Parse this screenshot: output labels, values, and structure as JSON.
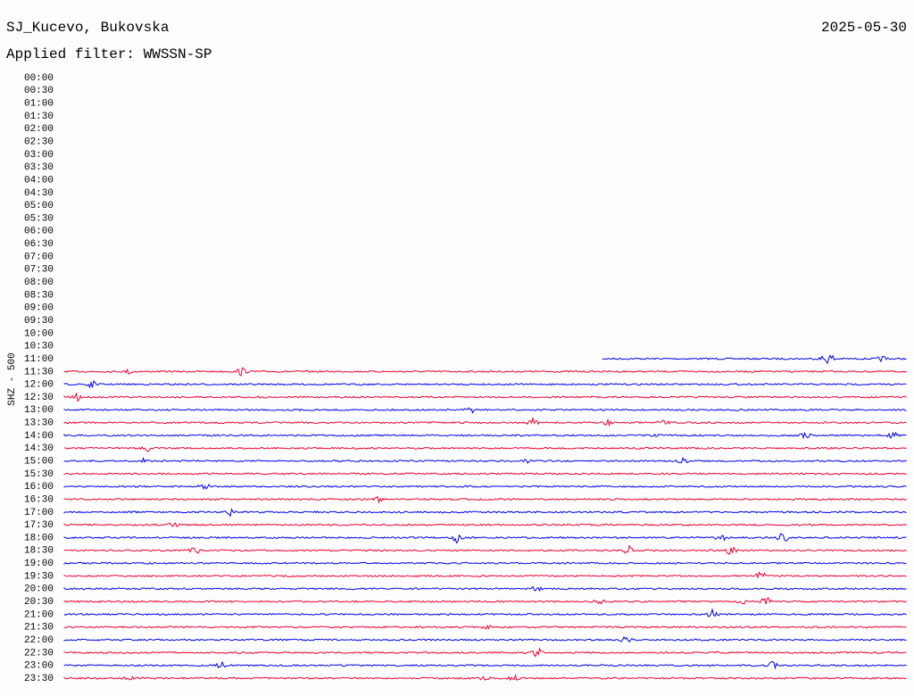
{
  "header": {
    "station": "SJ_Kucevo, Bukovska",
    "date": "2025-05-30",
    "filter": "Applied filter: WWSSN-SP"
  },
  "channel_label": "SHZ - 500",
  "trace_colors": [
    "#0000ee",
    "#ee0033"
  ],
  "rows": [
    "00:00",
    "00:30",
    "01:00",
    "01:30",
    "02:00",
    "02:30",
    "03:00",
    "03:30",
    "04:00",
    "04:30",
    "05:00",
    "05:30",
    "06:00",
    "06:30",
    "07:00",
    "07:30",
    "08:00",
    "08:30",
    "09:00",
    "09:30",
    "10:00",
    "10:30",
    "11:00",
    "11:30",
    "12:00",
    "12:30",
    "13:00",
    "13:30",
    "14:00",
    "14:30",
    "15:00",
    "15:30",
    "16:00",
    "16:30",
    "17:00",
    "17:30",
    "18:00",
    "18:30",
    "19:00",
    "19:30",
    "20:00",
    "20:30",
    "21:00",
    "21:30",
    "22:00",
    "22:30",
    "23:00",
    "23:30"
  ]
}
